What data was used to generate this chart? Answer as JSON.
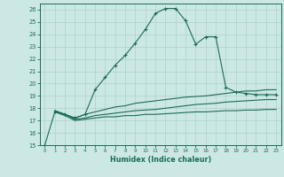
{
  "title": "",
  "xlabel": "Humidex (Indice chaleur)",
  "bg_color": "#cce8e4",
  "grid_color": "#aed0cc",
  "line_color": "#1a6b5a",
  "xlim": [
    -0.5,
    23.5
  ],
  "ylim": [
    15,
    26.5
  ],
  "xticks": [
    0,
    1,
    2,
    3,
    4,
    5,
    6,
    7,
    8,
    9,
    10,
    11,
    12,
    13,
    14,
    15,
    16,
    17,
    18,
    19,
    20,
    21,
    22,
    23
  ],
  "yticks": [
    15,
    16,
    17,
    18,
    19,
    20,
    21,
    22,
    23,
    24,
    25,
    26
  ],
  "series1_x": [
    0,
    1,
    2,
    3,
    4,
    5,
    6,
    7,
    8,
    9,
    10,
    11,
    12,
    13,
    14,
    15,
    16,
    17,
    18,
    19,
    20,
    21,
    22,
    23
  ],
  "series1_y": [
    15.0,
    17.7,
    17.5,
    17.2,
    17.5,
    19.5,
    20.5,
    21.5,
    22.3,
    23.3,
    24.4,
    25.7,
    26.1,
    26.1,
    25.1,
    23.2,
    23.8,
    23.8,
    19.7,
    19.3,
    19.2,
    19.1,
    19.1,
    19.1
  ],
  "series2_x": [
    1,
    2,
    3,
    4,
    5,
    6,
    7,
    8,
    9,
    10,
    11,
    12,
    13,
    14,
    15,
    16,
    17,
    18,
    19,
    20,
    21,
    22,
    23
  ],
  "series2_y": [
    17.8,
    17.5,
    17.2,
    17.5,
    17.7,
    17.9,
    18.1,
    18.2,
    18.4,
    18.5,
    18.6,
    18.7,
    18.8,
    18.9,
    18.95,
    19.0,
    19.1,
    19.2,
    19.3,
    19.4,
    19.4,
    19.5,
    19.5
  ],
  "series3_x": [
    1,
    2,
    3,
    4,
    5,
    6,
    7,
    8,
    9,
    10,
    11,
    12,
    13,
    14,
    15,
    16,
    17,
    18,
    19,
    20,
    21,
    22,
    23
  ],
  "series3_y": [
    17.8,
    17.5,
    17.1,
    17.2,
    17.4,
    17.5,
    17.6,
    17.7,
    17.8,
    17.85,
    17.9,
    18.0,
    18.1,
    18.2,
    18.3,
    18.35,
    18.4,
    18.5,
    18.55,
    18.6,
    18.65,
    18.7,
    18.7
  ],
  "series4_x": [
    1,
    2,
    3,
    4,
    5,
    6,
    7,
    8,
    9,
    10,
    11,
    12,
    13,
    14,
    15,
    16,
    17,
    18,
    19,
    20,
    21,
    22,
    23
  ],
  "series4_y": [
    17.7,
    17.4,
    17.0,
    17.1,
    17.2,
    17.3,
    17.3,
    17.4,
    17.4,
    17.5,
    17.5,
    17.55,
    17.6,
    17.65,
    17.7,
    17.7,
    17.75,
    17.8,
    17.8,
    17.85,
    17.85,
    17.9,
    17.9
  ]
}
